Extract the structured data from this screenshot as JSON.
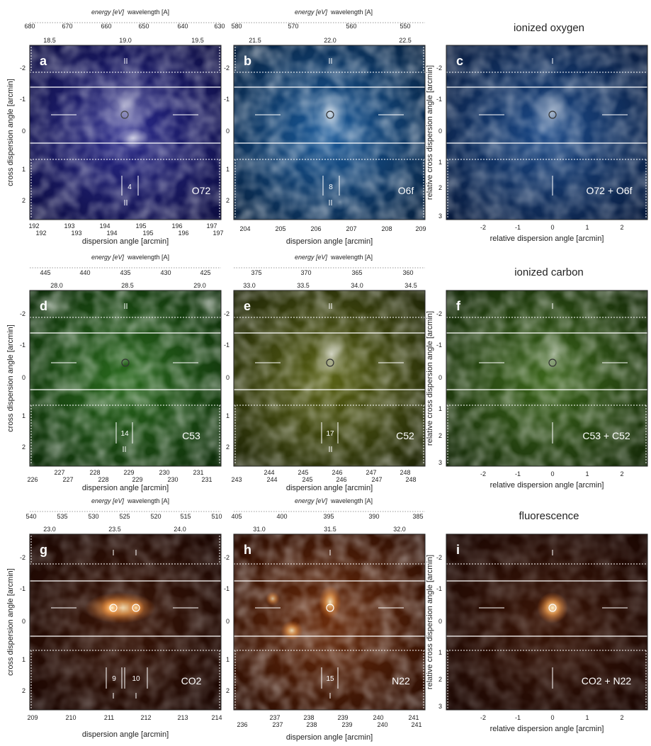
{
  "figure": {
    "section_labels": [
      "ionized oxygen",
      "ionized carbon",
      "fluorescence"
    ],
    "top_axis_energy_label": "energy [eV]",
    "top_axis_wavelength_label": "wavelength [A]",
    "cross_dispersion_label": "cross dispersion angle [arcmin]",
    "dispersion_label": "dispersion angle [arcmin]",
    "relative_cross_label": "relative cross dispersion angle [arcmin]",
    "relative_dispersion_label": "relative dispersion angle [arcmin]",
    "cross_ticks": [
      "-2",
      "-1",
      "0",
      "1",
      "2"
    ],
    "relative_cross_ticks": [
      "-2",
      "-1",
      "0",
      "1",
      "2",
      "3"
    ],
    "relative_dispersion_ticks": [
      "-2",
      "-1",
      "0",
      "1",
      "2"
    ]
  },
  "panels": [
    {
      "letter": "a",
      "ion": "O72",
      "counts": [
        "4"
      ],
      "color": "#7070ff",
      "energy_ticks": [
        "18.5",
        "19.0",
        "19.5"
      ],
      "wavelength_ticks": [
        "680",
        "670",
        "660",
        "650",
        "640",
        "630"
      ],
      "dispersion_ticks_upper": [
        "192",
        "193",
        "194",
        "195",
        "196",
        "197"
      ],
      "dispersion_ticks_lower": [
        "192",
        "193",
        "194",
        "195",
        "196",
        "197"
      ]
    },
    {
      "letter": "b",
      "ion": "O6f",
      "counts": [
        "8"
      ],
      "color": "#40b0e8",
      "energy_ticks": [
        "21.5",
        "22.0",
        "22.5"
      ],
      "wavelength_ticks": [
        "580",
        "570",
        "560",
        "550"
      ],
      "dispersion_ticks_lower": [
        "204",
        "205",
        "206",
        "207",
        "208",
        "209"
      ]
    },
    {
      "letter": "c",
      "ion": "O72 + O6f",
      "color": "#5a8ee0"
    },
    {
      "letter": "d",
      "ion": "C53",
      "counts": [
        "14"
      ],
      "color": "#58c040",
      "energy_ticks": [
        "28.0",
        "28.5",
        "29.0"
      ],
      "wavelength_ticks": [
        "445",
        "440",
        "435",
        "430",
        "425"
      ],
      "dispersion_ticks_upper": [
        "227",
        "228",
        "229",
        "230",
        "231"
      ],
      "dispersion_ticks_lower": [
        "226",
        "227",
        "228",
        "229",
        "230",
        "231"
      ]
    },
    {
      "letter": "e",
      "ion": "C52",
      "counts": [
        "17"
      ],
      "color": "#b8c840",
      "energy_ticks": [
        "33.0",
        "33.5",
        "34.0",
        "34.5"
      ],
      "wavelength_ticks": [
        "375",
        "370",
        "365",
        "360"
      ],
      "dispersion_ticks_upper": [
        "244",
        "245",
        "246",
        "247",
        "248"
      ],
      "dispersion_ticks_lower": [
        "243",
        "244",
        "245",
        "246",
        "247",
        "248"
      ]
    },
    {
      "letter": "f",
      "ion": "C53 + C52",
      "color": "#88c040"
    },
    {
      "letter": "g",
      "ion": "CO2",
      "counts": [
        "9",
        "10"
      ],
      "color": "#e09040",
      "energy_ticks": [
        "23.0",
        "23.5",
        "24.0"
      ],
      "wavelength_ticks": [
        "540",
        "535",
        "530",
        "525",
        "520",
        "515",
        "510"
      ],
      "dispersion_ticks_lower": [
        "209",
        "210",
        "211",
        "212",
        "213",
        "214"
      ]
    },
    {
      "letter": "h",
      "ion": "N22",
      "counts": [
        "15"
      ],
      "color": "#e08030",
      "energy_ticks": [
        "31.0",
        "31.5",
        "32.0"
      ],
      "wavelength_ticks": [
        "405",
        "400",
        "395",
        "390",
        "385"
      ],
      "dispersion_ticks_upper": [
        "237",
        "238",
        "239",
        "240",
        "241"
      ],
      "dispersion_ticks_lower": [
        "236",
        "237",
        "238",
        "239",
        "240",
        "241"
      ]
    },
    {
      "letter": "i",
      "ion": "CO2 + N22",
      "color": "#e09040"
    }
  ]
}
